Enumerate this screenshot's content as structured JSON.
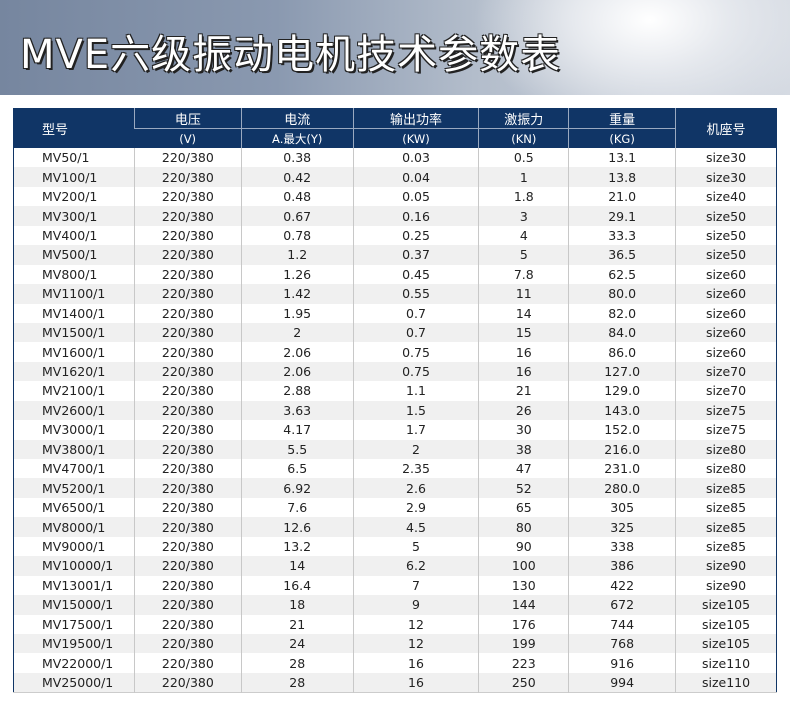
{
  "title": "MVE六级振动电机技术参数表",
  "headers": {
    "model": "型号",
    "voltage": "电压",
    "voltage_unit": "(V)",
    "current": "电流",
    "current_unit": "A.最大(Y)",
    "power": "输出功率",
    "power_unit": "(KW)",
    "force": "激振力",
    "force_unit": "(KN)",
    "weight": "重量",
    "weight_unit": "(KG)",
    "frame": "机座号"
  },
  "rows": [
    [
      "MV50/1",
      "220/380",
      "0.38",
      "0.03",
      "0.5",
      "13.1",
      "size30"
    ],
    [
      "MV100/1",
      "220/380",
      "0.42",
      "0.04",
      "1",
      "13.8",
      "size30"
    ],
    [
      "MV200/1",
      "220/380",
      "0.48",
      "0.05",
      "1.8",
      "21.0",
      "size40"
    ],
    [
      "MV300/1",
      "220/380",
      "0.67",
      "0.16",
      "3",
      "29.1",
      "size50"
    ],
    [
      "MV400/1",
      "220/380",
      "0.78",
      "0.25",
      "4",
      "33.3",
      "size50"
    ],
    [
      "MV500/1",
      "220/380",
      "1.2",
      "0.37",
      "5",
      "36.5",
      "size50"
    ],
    [
      "MV800/1",
      "220/380",
      "1.26",
      "0.45",
      "7.8",
      "62.5",
      "size60"
    ],
    [
      "MV1100/1",
      "220/380",
      "1.42",
      "0.55",
      "11",
      "80.0",
      "size60"
    ],
    [
      "MV1400/1",
      "220/380",
      "1.95",
      "0.7",
      "14",
      "82.0",
      "size60"
    ],
    [
      "MV1500/1",
      "220/380",
      "2",
      "0.7",
      "15",
      "84.0",
      "size60"
    ],
    [
      "MV1600/1",
      "220/380",
      "2.06",
      "0.75",
      "16",
      "86.0",
      "size60"
    ],
    [
      "MV1620/1",
      "220/380",
      "2.06",
      "0.75",
      "16",
      "127.0",
      "size70"
    ],
    [
      "MV2100/1",
      "220/380",
      "2.88",
      "1.1",
      "21",
      "129.0",
      "size70"
    ],
    [
      "MV2600/1",
      "220/380",
      "3.63",
      "1.5",
      "26",
      "143.0",
      "size75"
    ],
    [
      "MV3000/1",
      "220/380",
      "4.17",
      "1.7",
      "30",
      "152.0",
      "size75"
    ],
    [
      "MV3800/1",
      "220/380",
      "5.5",
      "2",
      "38",
      "216.0",
      "size80"
    ],
    [
      "MV4700/1",
      "220/380",
      "6.5",
      "2.35",
      "47",
      "231.0",
      "size80"
    ],
    [
      "MV5200/1",
      "220/380",
      "6.92",
      "2.6",
      "52",
      "280.0",
      "size85"
    ],
    [
      "MV6500/1",
      "220/380",
      "7.6",
      "2.9",
      "65",
      "305",
      "size85"
    ],
    [
      "MV8000/1",
      "220/380",
      "12.6",
      "4.5",
      "80",
      "325",
      "size85"
    ],
    [
      "MV9000/1",
      "220/380",
      "13.2",
      "5",
      "90",
      "338",
      "size85"
    ],
    [
      "MV10000/1",
      "220/380",
      "14",
      "6.2",
      "100",
      "386",
      "size90"
    ],
    [
      "MV13001/1",
      "220/380",
      "16.4",
      "7",
      "130",
      "422",
      "size90"
    ],
    [
      "MV15000/1",
      "220/380",
      "18",
      "9",
      "144",
      "672",
      "size105"
    ],
    [
      "MV17500/1",
      "220/380",
      "21",
      "12",
      "176",
      "744",
      "size105"
    ],
    [
      "MV19500/1",
      "220/380",
      "24",
      "12",
      "199",
      "768",
      "size105"
    ],
    [
      "MV22000/1",
      "220/380",
      "28",
      "16",
      "223",
      "916",
      "size110"
    ],
    [
      "MV25000/1",
      "220/380",
      "28",
      "16",
      "250",
      "994",
      "size110"
    ]
  ]
}
